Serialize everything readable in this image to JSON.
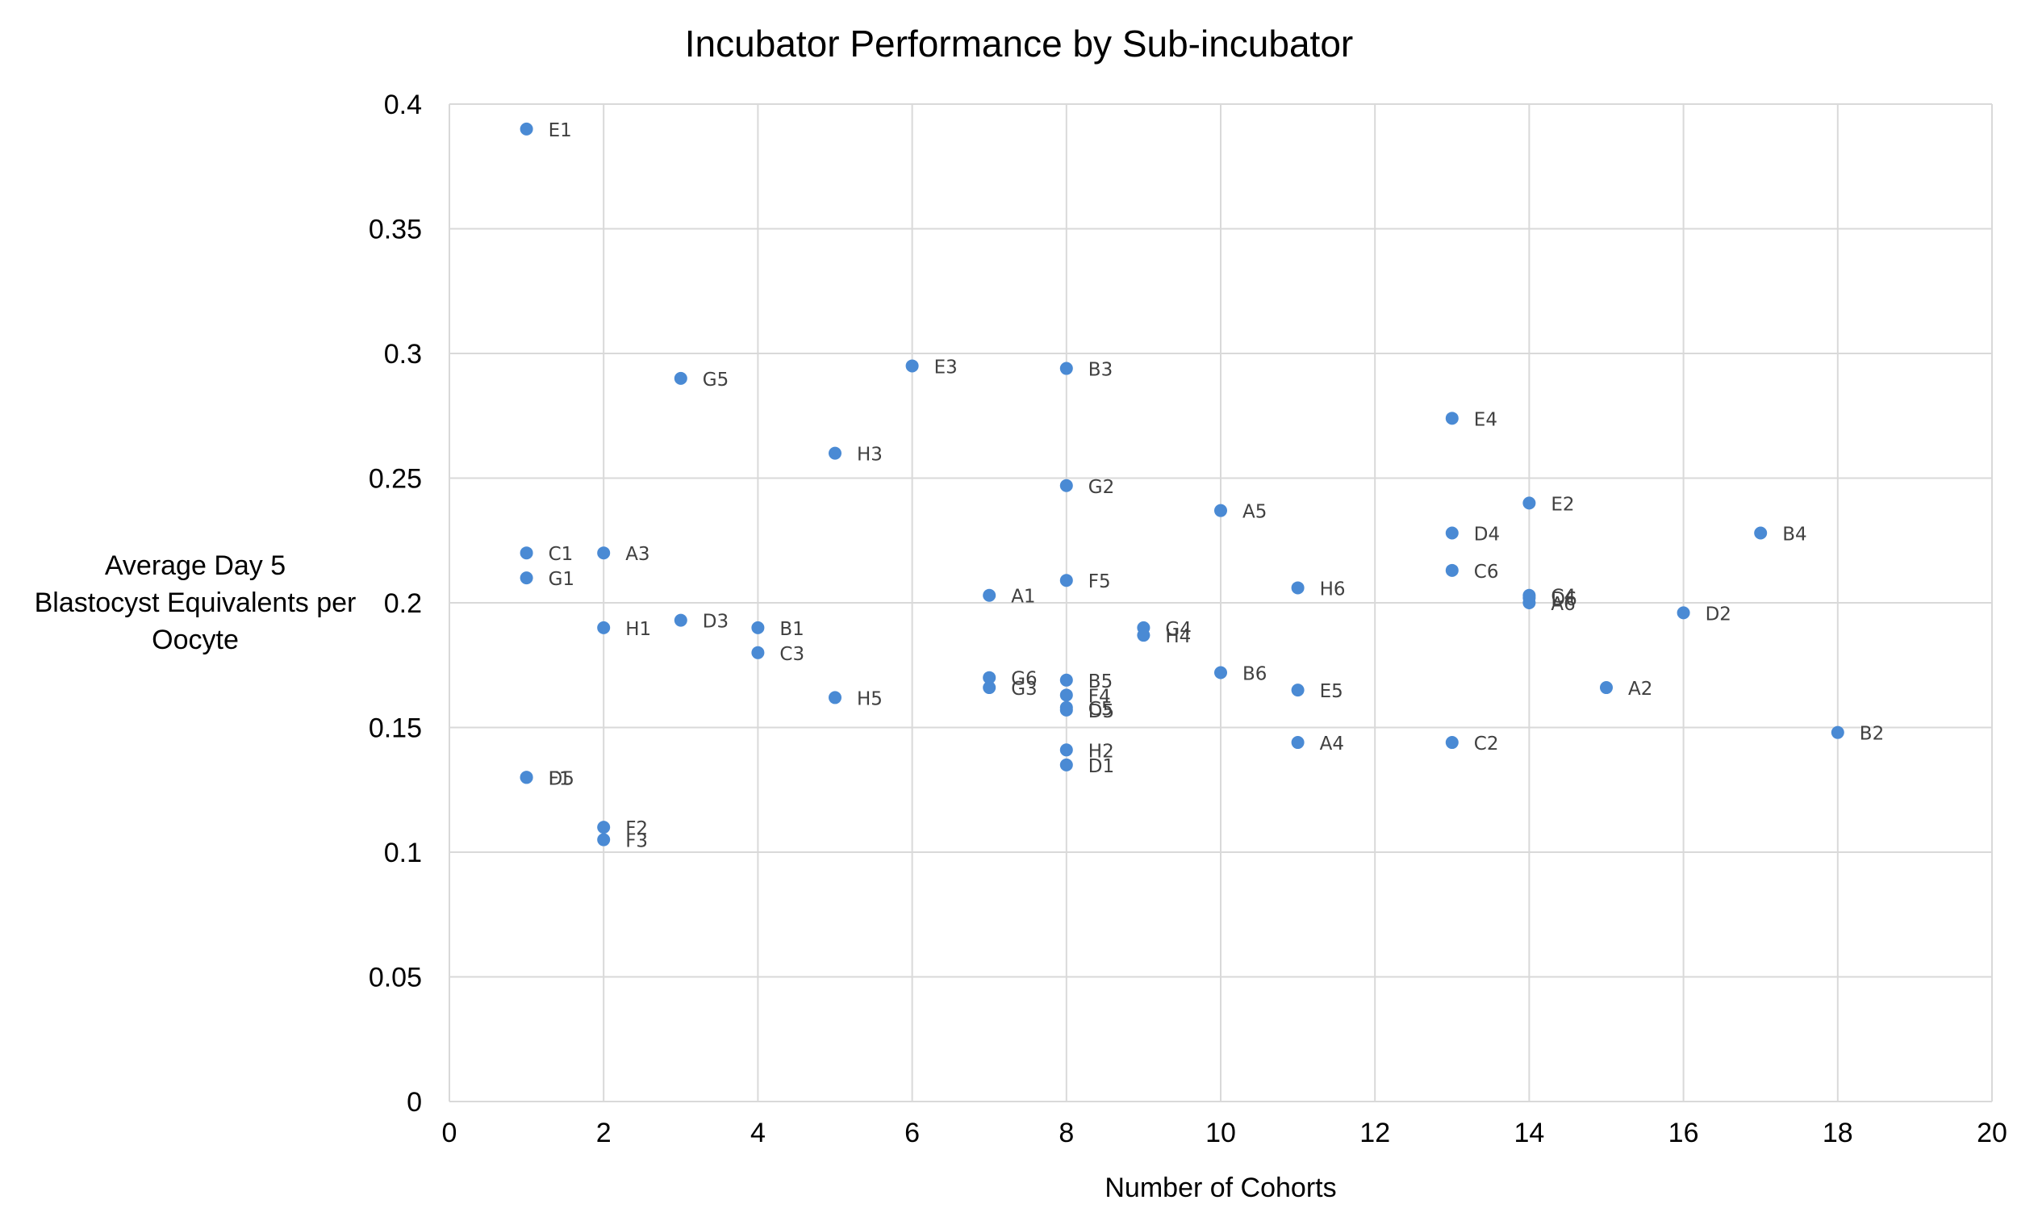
{
  "chart_data": {
    "type": "scatter",
    "title": "Incubator Performance by Sub-incubator",
    "xlabel": "Number of Cohorts",
    "ylabel": "Average Day 5 Blastocyst Equivalents per Oocyte",
    "ylabel_lines": [
      "Average Day 5",
      "Blastocyst Equivalents per",
      "Oocyte"
    ],
    "xlim": [
      0,
      20
    ],
    "ylim": [
      0,
      0.4
    ],
    "xticks": [
      "0",
      "2",
      "4",
      "6",
      "8",
      "10",
      "12",
      "14",
      "16",
      "18",
      "20"
    ],
    "yticks": [
      "0",
      "0.05",
      "0.1",
      "0.15",
      "0.2",
      "0.25",
      "0.3",
      "0.35",
      "0.4"
    ],
    "grid": true,
    "marker_color": "#4a8ad4",
    "gridline_color": "#d9d9d9",
    "points": [
      {
        "label": "E1",
        "x": 1,
        "y": 0.39
      },
      {
        "label": "C1",
        "x": 1,
        "y": 0.22
      },
      {
        "label": "G1",
        "x": 1,
        "y": 0.21
      },
      {
        "label": "D5",
        "x": 1,
        "y": 0.13
      },
      {
        "label": "F1",
        "x": 1,
        "y": 0.13
      },
      {
        "label": "A3",
        "x": 2,
        "y": 0.22
      },
      {
        "label": "H1",
        "x": 2,
        "y": 0.19
      },
      {
        "label": "F2",
        "x": 2,
        "y": 0.11
      },
      {
        "label": "F3",
        "x": 2,
        "y": 0.105
      },
      {
        "label": "G5",
        "x": 3,
        "y": 0.29
      },
      {
        "label": "D3",
        "x": 3,
        "y": 0.193
      },
      {
        "label": "B1",
        "x": 4,
        "y": 0.19
      },
      {
        "label": "C3",
        "x": 4,
        "y": 0.18
      },
      {
        "label": "H3",
        "x": 5,
        "y": 0.26
      },
      {
        "label": "H5",
        "x": 5,
        "y": 0.162
      },
      {
        "label": "E3",
        "x": 6,
        "y": 0.295
      },
      {
        "label": "A1",
        "x": 7,
        "y": 0.203
      },
      {
        "label": "G6",
        "x": 7,
        "y": 0.17
      },
      {
        "label": "G3",
        "x": 7,
        "y": 0.166
      },
      {
        "label": "B3",
        "x": 8,
        "y": 0.294
      },
      {
        "label": "G2",
        "x": 8,
        "y": 0.247
      },
      {
        "label": "F5",
        "x": 8,
        "y": 0.209
      },
      {
        "label": "B5",
        "x": 8,
        "y": 0.169
      },
      {
        "label": "F4",
        "x": 8,
        "y": 0.163
      },
      {
        "label": "C5",
        "x": 8,
        "y": 0.158
      },
      {
        "label": "D5",
        "x": 8,
        "y": 0.157
      },
      {
        "label": "H2",
        "x": 8,
        "y": 0.141
      },
      {
        "label": "D1",
        "x": 8,
        "y": 0.135
      },
      {
        "label": "G4",
        "x": 9,
        "y": 0.19
      },
      {
        "label": "H4",
        "x": 9,
        "y": 0.187
      },
      {
        "label": "A5",
        "x": 10,
        "y": 0.237
      },
      {
        "label": "B6",
        "x": 10,
        "y": 0.172
      },
      {
        "label": "H6",
        "x": 11,
        "y": 0.206
      },
      {
        "label": "E5",
        "x": 11,
        "y": 0.165
      },
      {
        "label": "A4",
        "x": 11,
        "y": 0.144
      },
      {
        "label": "E4",
        "x": 13,
        "y": 0.274
      },
      {
        "label": "D4",
        "x": 13,
        "y": 0.228
      },
      {
        "label": "C6",
        "x": 13,
        "y": 0.213
      },
      {
        "label": "C2",
        "x": 13,
        "y": 0.144
      },
      {
        "label": "E2",
        "x": 14,
        "y": 0.24
      },
      {
        "label": "C4",
        "x": 14,
        "y": 0.203
      },
      {
        "label": "D6",
        "x": 14,
        "y": 0.202
      },
      {
        "label": "A6",
        "x": 14,
        "y": 0.2
      },
      {
        "label": "A2",
        "x": 15,
        "y": 0.166
      },
      {
        "label": "D2",
        "x": 16,
        "y": 0.196
      },
      {
        "label": "B4",
        "x": 17,
        "y": 0.228
      },
      {
        "label": "B2",
        "x": 18,
        "y": 0.148
      }
    ]
  }
}
